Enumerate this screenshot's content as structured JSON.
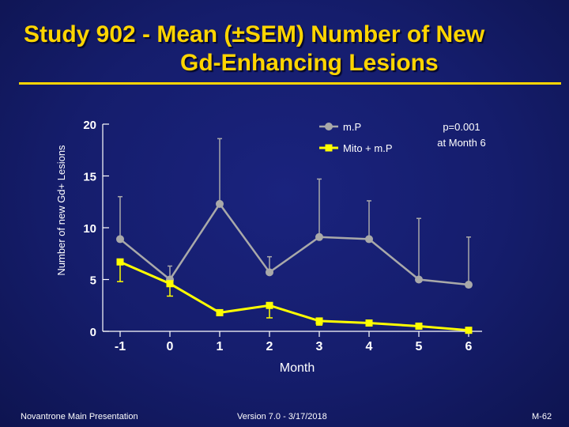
{
  "title": {
    "line1": "Study 902 - Mean (±SEM) Number of New",
    "line2": "Gd-Enhancing Lesions"
  },
  "footer": {
    "left": "Novantrone Main Presentation",
    "center": "Version 7.0 - 3/17/2018",
    "right": "M-62"
  },
  "colors": {
    "background": "#151d6c",
    "title": "#ffd500",
    "axis": "#ffffff",
    "series_mp": "#a9a9a9",
    "series_mito": "#ffff00"
  },
  "chart_data": {
    "type": "line",
    "title": "",
    "xlabel": "Month",
    "ylabel": "Number of new Gd+ Lesions",
    "x": [
      -1,
      0,
      1,
      2,
      3,
      4,
      5,
      6
    ],
    "x_tick_labels": [
      "-1",
      "0",
      "1",
      "2",
      "3",
      "4",
      "5",
      "6"
    ],
    "ylim": [
      0,
      20
    ],
    "y_ticks": [
      0,
      5,
      10,
      15,
      20
    ],
    "y_tick_labels": [
      "0",
      "5",
      "10",
      "15",
      "20"
    ],
    "grid": false,
    "legend_position": "top-right",
    "annotation": {
      "line1": "p=0.001",
      "line2": "at Month 6"
    },
    "series": [
      {
        "name": "m.P",
        "marker": "circle",
        "values": [
          8.9,
          5.0,
          12.3,
          5.7,
          9.1,
          8.9,
          5.0,
          4.5
        ],
        "err_upper": [
          4.1,
          1.3,
          6.3,
          1.5,
          5.6,
          3.7,
          5.9,
          4.6
        ],
        "err_lower": [
          0,
          0,
          0,
          0,
          0,
          0,
          0,
          0
        ]
      },
      {
        "name": "Mito + m.P",
        "marker": "square",
        "values": [
          6.7,
          4.6,
          1.8,
          2.5,
          1.0,
          0.8,
          0.5,
          0.1
        ],
        "err_upper": [
          0,
          0,
          0,
          0,
          0,
          0,
          0,
          0
        ],
        "err_lower": [
          1.9,
          1.2,
          0,
          1.2,
          0.4,
          0,
          0,
          0
        ]
      }
    ]
  }
}
